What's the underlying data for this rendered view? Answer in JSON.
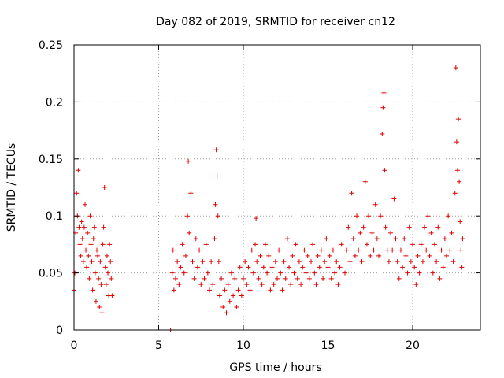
{
  "chart_data": {
    "type": "scatter",
    "title": "Day 082 of 2019, SRMTID for receiver cn12",
    "xlabel": "GPS time / hours",
    "ylabel": "SRMTID / TECUs",
    "xlim": [
      0,
      24
    ],
    "ylim": [
      0,
      0.25
    ],
    "xticks": [
      0,
      5,
      10,
      15,
      20
    ],
    "xtick_labels": [
      "0",
      "5",
      "10",
      "15",
      "20"
    ],
    "yticks": [
      0,
      0.05,
      0.1,
      0.15,
      0.2,
      0.25
    ],
    "ytick_labels": [
      "0",
      "0.05",
      "0.1",
      "0.15",
      "0.2",
      "0.25"
    ],
    "grid": true,
    "marker": "+",
    "series": [
      {
        "name": "SRMTID",
        "color": "#e00000",
        "points": [
          [
            0.0,
            0.035
          ],
          [
            0.05,
            0.05
          ],
          [
            0.1,
            0.085
          ],
          [
            0.15,
            0.12
          ],
          [
            0.2,
            0.1
          ],
          [
            0.25,
            0.14
          ],
          [
            0.3,
            0.09
          ],
          [
            0.35,
            0.075
          ],
          [
            0.4,
            0.065
          ],
          [
            0.45,
            0.095
          ],
          [
            0.5,
            0.08
          ],
          [
            0.55,
            0.06
          ],
          [
            0.6,
            0.09
          ],
          [
            0.65,
            0.11
          ],
          [
            0.7,
            0.07
          ],
          [
            0.75,
            0.055
          ],
          [
            0.8,
            0.085
          ],
          [
            0.85,
            0.065
          ],
          [
            0.9,
            0.045
          ],
          [
            0.95,
            0.1
          ],
          [
            1.0,
            0.075
          ],
          [
            1.05,
            0.06
          ],
          [
            1.1,
            0.035
          ],
          [
            1.15,
            0.08
          ],
          [
            1.2,
            0.09
          ],
          [
            1.25,
            0.05
          ],
          [
            1.3,
            0.025
          ],
          [
            1.35,
            0.07
          ],
          [
            1.4,
            0.065
          ],
          [
            1.45,
            0.045
          ],
          [
            1.5,
            0.02
          ],
          [
            1.55,
            0.06
          ],
          [
            1.6,
            0.04
          ],
          [
            1.65,
            0.015
          ],
          [
            1.7,
            0.075
          ],
          [
            1.75,
            0.09
          ],
          [
            1.8,
            0.125
          ],
          [
            1.85,
            0.055
          ],
          [
            1.9,
            0.04
          ],
          [
            1.95,
            0.065
          ],
          [
            2.0,
            0.05
          ],
          [
            2.05,
            0.03
          ],
          [
            2.1,
            0.075
          ],
          [
            2.15,
            0.06
          ],
          [
            2.2,
            0.045
          ],
          [
            2.25,
            0.03
          ],
          [
            5.7,
            0.0
          ],
          [
            5.8,
            0.05
          ],
          [
            5.85,
            0.07
          ],
          [
            5.9,
            0.035
          ],
          [
            6.0,
            0.045
          ],
          [
            6.1,
            0.06
          ],
          [
            6.2,
            0.04
          ],
          [
            6.3,
            0.055
          ],
          [
            6.4,
            0.075
          ],
          [
            6.5,
            0.05
          ],
          [
            6.6,
            0.065
          ],
          [
            6.7,
            0.1
          ],
          [
            6.75,
            0.148
          ],
          [
            6.8,
            0.085
          ],
          [
            6.9,
            0.12
          ],
          [
            7.0,
            0.06
          ],
          [
            7.1,
            0.045
          ],
          [
            7.2,
            0.08
          ],
          [
            7.3,
            0.055
          ],
          [
            7.4,
            0.07
          ],
          [
            7.5,
            0.04
          ],
          [
            7.6,
            0.06
          ],
          [
            7.7,
            0.045
          ],
          [
            7.8,
            0.075
          ],
          [
            7.9,
            0.05
          ],
          [
            8.0,
            0.035
          ],
          [
            8.1,
            0.06
          ],
          [
            8.2,
            0.04
          ],
          [
            8.3,
            0.08
          ],
          [
            8.35,
            0.11
          ],
          [
            8.4,
            0.158
          ],
          [
            8.45,
            0.135
          ],
          [
            8.5,
            0.1
          ],
          [
            8.55,
            0.06
          ],
          [
            8.6,
            0.03
          ],
          [
            8.7,
            0.045
          ],
          [
            8.8,
            0.02
          ],
          [
            8.9,
            0.035
          ],
          [
            9.0,
            0.015
          ],
          [
            9.1,
            0.04
          ],
          [
            9.2,
            0.025
          ],
          [
            9.3,
            0.05
          ],
          [
            9.4,
            0.03
          ],
          [
            9.5,
            0.045
          ],
          [
            9.6,
            0.02
          ],
          [
            9.7,
            0.035
          ],
          [
            9.8,
            0.055
          ],
          [
            9.9,
            0.03
          ],
          [
            10.0,
            0.045
          ],
          [
            10.1,
            0.06
          ],
          [
            10.2,
            0.04
          ],
          [
            10.3,
            0.055
          ],
          [
            10.4,
            0.035
          ],
          [
            10.5,
            0.07
          ],
          [
            10.6,
            0.05
          ],
          [
            10.7,
            0.075
          ],
          [
            10.75,
            0.098
          ],
          [
            10.8,
            0.06
          ],
          [
            10.9,
            0.045
          ],
          [
            11.0,
            0.065
          ],
          [
            11.1,
            0.04
          ],
          [
            11.2,
            0.055
          ],
          [
            11.3,
            0.075
          ],
          [
            11.4,
            0.05
          ],
          [
            11.5,
            0.065
          ],
          [
            11.6,
            0.035
          ],
          [
            11.7,
            0.055
          ],
          [
            11.8,
            0.04
          ],
          [
            11.9,
            0.06
          ],
          [
            12.0,
            0.045
          ],
          [
            12.1,
            0.07
          ],
          [
            12.2,
            0.05
          ],
          [
            12.3,
            0.035
          ],
          [
            12.4,
            0.06
          ],
          [
            12.5,
            0.045
          ],
          [
            12.6,
            0.08
          ],
          [
            12.7,
            0.055
          ],
          [
            12.8,
            0.04
          ],
          [
            12.9,
            0.065
          ],
          [
            13.0,
            0.05
          ],
          [
            13.1,
            0.075
          ],
          [
            13.2,
            0.045
          ],
          [
            13.3,
            0.06
          ],
          [
            13.4,
            0.04
          ],
          [
            13.5,
            0.055
          ],
          [
            13.6,
            0.07
          ],
          [
            13.7,
            0.05
          ],
          [
            13.8,
            0.065
          ],
          [
            13.9,
            0.045
          ],
          [
            14.0,
            0.06
          ],
          [
            14.1,
            0.075
          ],
          [
            14.2,
            0.05
          ],
          [
            14.3,
            0.04
          ],
          [
            14.4,
            0.065
          ],
          [
            14.5,
            0.055
          ],
          [
            14.6,
            0.07
          ],
          [
            14.7,
            0.045
          ],
          [
            14.8,
            0.06
          ],
          [
            14.9,
            0.08
          ],
          [
            15.0,
            0.055
          ],
          [
            15.1,
            0.065
          ],
          [
            15.2,
            0.045
          ],
          [
            15.3,
            0.07
          ],
          [
            15.4,
            0.05
          ],
          [
            15.5,
            0.06
          ],
          [
            15.6,
            0.04
          ],
          [
            15.7,
            0.055
          ],
          [
            15.8,
            0.075
          ],
          [
            16.0,
            0.05
          ],
          [
            16.1,
            0.07
          ],
          [
            16.2,
            0.09
          ],
          [
            16.3,
            0.06
          ],
          [
            16.4,
            0.12
          ],
          [
            16.5,
            0.08
          ],
          [
            16.6,
            0.065
          ],
          [
            16.7,
            0.1
          ],
          [
            16.8,
            0.07
          ],
          [
            16.9,
            0.085
          ],
          [
            17.0,
            0.06
          ],
          [
            17.1,
            0.09
          ],
          [
            17.2,
            0.13
          ],
          [
            17.3,
            0.075
          ],
          [
            17.4,
            0.1
          ],
          [
            17.5,
            0.065
          ],
          [
            17.6,
            0.085
          ],
          [
            17.7,
            0.07
          ],
          [
            17.8,
            0.11
          ],
          [
            17.9,
            0.08
          ],
          [
            18.0,
            0.065
          ],
          [
            18.1,
            0.1
          ],
          [
            18.2,
            0.172
          ],
          [
            18.25,
            0.195
          ],
          [
            18.3,
            0.208
          ],
          [
            18.35,
            0.14
          ],
          [
            18.4,
            0.09
          ],
          [
            18.5,
            0.07
          ],
          [
            18.6,
            0.06
          ],
          [
            18.7,
            0.085
          ],
          [
            18.8,
            0.07
          ],
          [
            18.9,
            0.115
          ],
          [
            19.0,
            0.08
          ],
          [
            19.1,
            0.06
          ],
          [
            19.2,
            0.045
          ],
          [
            19.3,
            0.07
          ],
          [
            19.4,
            0.055
          ],
          [
            19.5,
            0.08
          ],
          [
            19.6,
            0.065
          ],
          [
            19.7,
            0.05
          ],
          [
            19.8,
            0.09
          ],
          [
            19.9,
            0.06
          ],
          [
            20.0,
            0.075
          ],
          [
            20.1,
            0.055
          ],
          [
            20.2,
            0.04
          ],
          [
            20.3,
            0.065
          ],
          [
            20.4,
            0.05
          ],
          [
            20.5,
            0.075
          ],
          [
            20.6,
            0.06
          ],
          [
            20.7,
            0.09
          ],
          [
            20.8,
            0.07
          ],
          [
            20.9,
            0.1
          ],
          [
            21.0,
            0.065
          ],
          [
            21.1,
            0.085
          ],
          [
            21.2,
            0.05
          ],
          [
            21.3,
            0.075
          ],
          [
            21.4,
            0.06
          ],
          [
            21.5,
            0.09
          ],
          [
            21.6,
            0.045
          ],
          [
            21.7,
            0.07
          ],
          [
            21.8,
            0.055
          ],
          [
            21.9,
            0.08
          ],
          [
            22.0,
            0.065
          ],
          [
            22.1,
            0.1
          ],
          [
            22.2,
            0.07
          ],
          [
            22.3,
            0.085
          ],
          [
            22.4,
            0.06
          ],
          [
            22.5,
            0.12
          ],
          [
            22.55,
            0.23
          ],
          [
            22.6,
            0.165
          ],
          [
            22.65,
            0.14
          ],
          [
            22.7,
            0.185
          ],
          [
            22.75,
            0.13
          ],
          [
            22.8,
            0.095
          ],
          [
            22.85,
            0.07
          ],
          [
            22.9,
            0.055
          ],
          [
            22.95,
            0.08
          ]
        ]
      }
    ]
  }
}
